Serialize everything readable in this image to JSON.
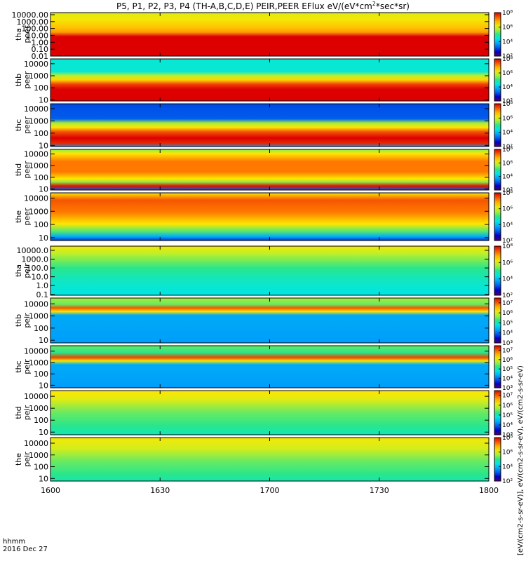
{
  "title": "P5, P1, P2, P3, P4 (TH-A,B,C,D,E) PEIR,PEER EFlux eV/(eV*cm²*sec*sr)",
  "footer": {
    "time_label": "hhmm",
    "date_label": "2016 Dec 27"
  },
  "colorbar_title": "[eV/(cm2-s-sr-eV)], eV/(cm2-s-sr-eV), eV/(cm2-s-sr-eV)",
  "colors": {
    "background": "#ffffff",
    "axes": "#000000"
  },
  "chart_data": {
    "type": "heatmap",
    "subtype": "stacked spectrograms",
    "x_ticks": [
      "1600",
      "1630",
      "1700",
      "1730",
      "1800"
    ],
    "x_range": [
      "16:00",
      "18:00"
    ],
    "yscale": "log",
    "colormap": "rainbow",
    "panels": [
      {
        "label": [
          "tha",
          "peer"
        ],
        "yticks": [
          "10000.00",
          "1000.00",
          "100.00",
          "10.00",
          "1.00",
          "0.10",
          "0.01"
        ],
        "ylim": [
          0.01,
          20000
        ],
        "colorbar_ticks": [
          "10⁸",
          "10⁶",
          "10⁴",
          "10²"
        ],
        "colorbar_range": [
          100,
          100000000
        ]
      },
      {
        "label": [
          "thb",
          "peer"
        ],
        "yticks": [
          "10000",
          "1000",
          "100",
          "10"
        ],
        "ylim": [
          8,
          25000
        ],
        "colorbar_ticks": [
          "10⁸",
          "10⁶",
          "10⁴",
          "10²"
        ],
        "colorbar_range": [
          100,
          100000000
        ]
      },
      {
        "label": [
          "thc",
          "peer"
        ],
        "yticks": [
          "10000",
          "1000",
          "100",
          "10"
        ],
        "ylim": [
          8,
          25000
        ],
        "colorbar_ticks": [
          "10⁸",
          "10⁶",
          "10⁴",
          "10²"
        ],
        "colorbar_range": [
          100,
          100000000
        ]
      },
      {
        "label": [
          "thd",
          "peer"
        ],
        "yticks": [
          "10000",
          "1000",
          "100",
          "10"
        ],
        "ylim": [
          8,
          25000
        ],
        "colorbar_ticks": [
          "10⁸",
          "10⁶",
          "10⁴",
          "10²"
        ],
        "colorbar_range": [
          100,
          100000000
        ]
      },
      {
        "label": [
          "the",
          "peer"
        ],
        "yticks": [
          "10000",
          "1000",
          "100",
          "10"
        ],
        "ylim": [
          6,
          25000
        ],
        "colorbar_ticks": [
          "10⁸",
          "10⁶",
          "10⁴",
          "10²"
        ],
        "colorbar_range": [
          100,
          100000000
        ]
      },
      {
        "label": [
          "tha",
          "peir"
        ],
        "yticks": [
          "10000.0",
          "1000.0",
          "100.0",
          "10.0",
          "1.0",
          "0.1"
        ],
        "ylim": [
          0.08,
          30000
        ],
        "colorbar_ticks": [
          "10⁸",
          "10⁶",
          "10⁴",
          "10²"
        ],
        "colorbar_range": [
          100,
          100000000
        ]
      },
      {
        "label": [
          "thb",
          "peir"
        ],
        "yticks": [
          "10000",
          "1000",
          "100",
          "10"
        ],
        "ylim": [
          6,
          30000
        ],
        "colorbar_ticks": [
          "10⁷",
          "10⁶",
          "10⁵",
          "10⁴",
          "10³"
        ],
        "colorbar_range": [
          1000,
          30000000
        ]
      },
      {
        "label": [
          "thc",
          "peir"
        ],
        "yticks": [
          "10000",
          "1000",
          "100",
          "10"
        ],
        "ylim": [
          6,
          30000
        ],
        "colorbar_ticks": [
          "10⁷",
          "10⁶",
          "10⁵",
          "10⁴",
          "10³"
        ],
        "colorbar_range": [
          1000,
          30000000
        ]
      },
      {
        "label": [
          "thd",
          "peir"
        ],
        "yticks": [
          "10000",
          "1000",
          "100",
          "10"
        ],
        "ylim": [
          6,
          30000
        ],
        "colorbar_ticks": [
          "10⁷",
          "10⁶",
          "10⁵",
          "10⁴",
          "10³"
        ],
        "colorbar_range": [
          1000,
          30000000
        ]
      },
      {
        "label": [
          "the",
          "peir"
        ],
        "yticks": [
          "10000",
          "1000",
          "100",
          "10"
        ],
        "ylim": [
          6,
          30000
        ],
        "colorbar_ticks": [
          "10⁸",
          "10⁶",
          "10⁴",
          "10²"
        ],
        "colorbar_range": [
          100,
          100000000
        ]
      }
    ]
  }
}
